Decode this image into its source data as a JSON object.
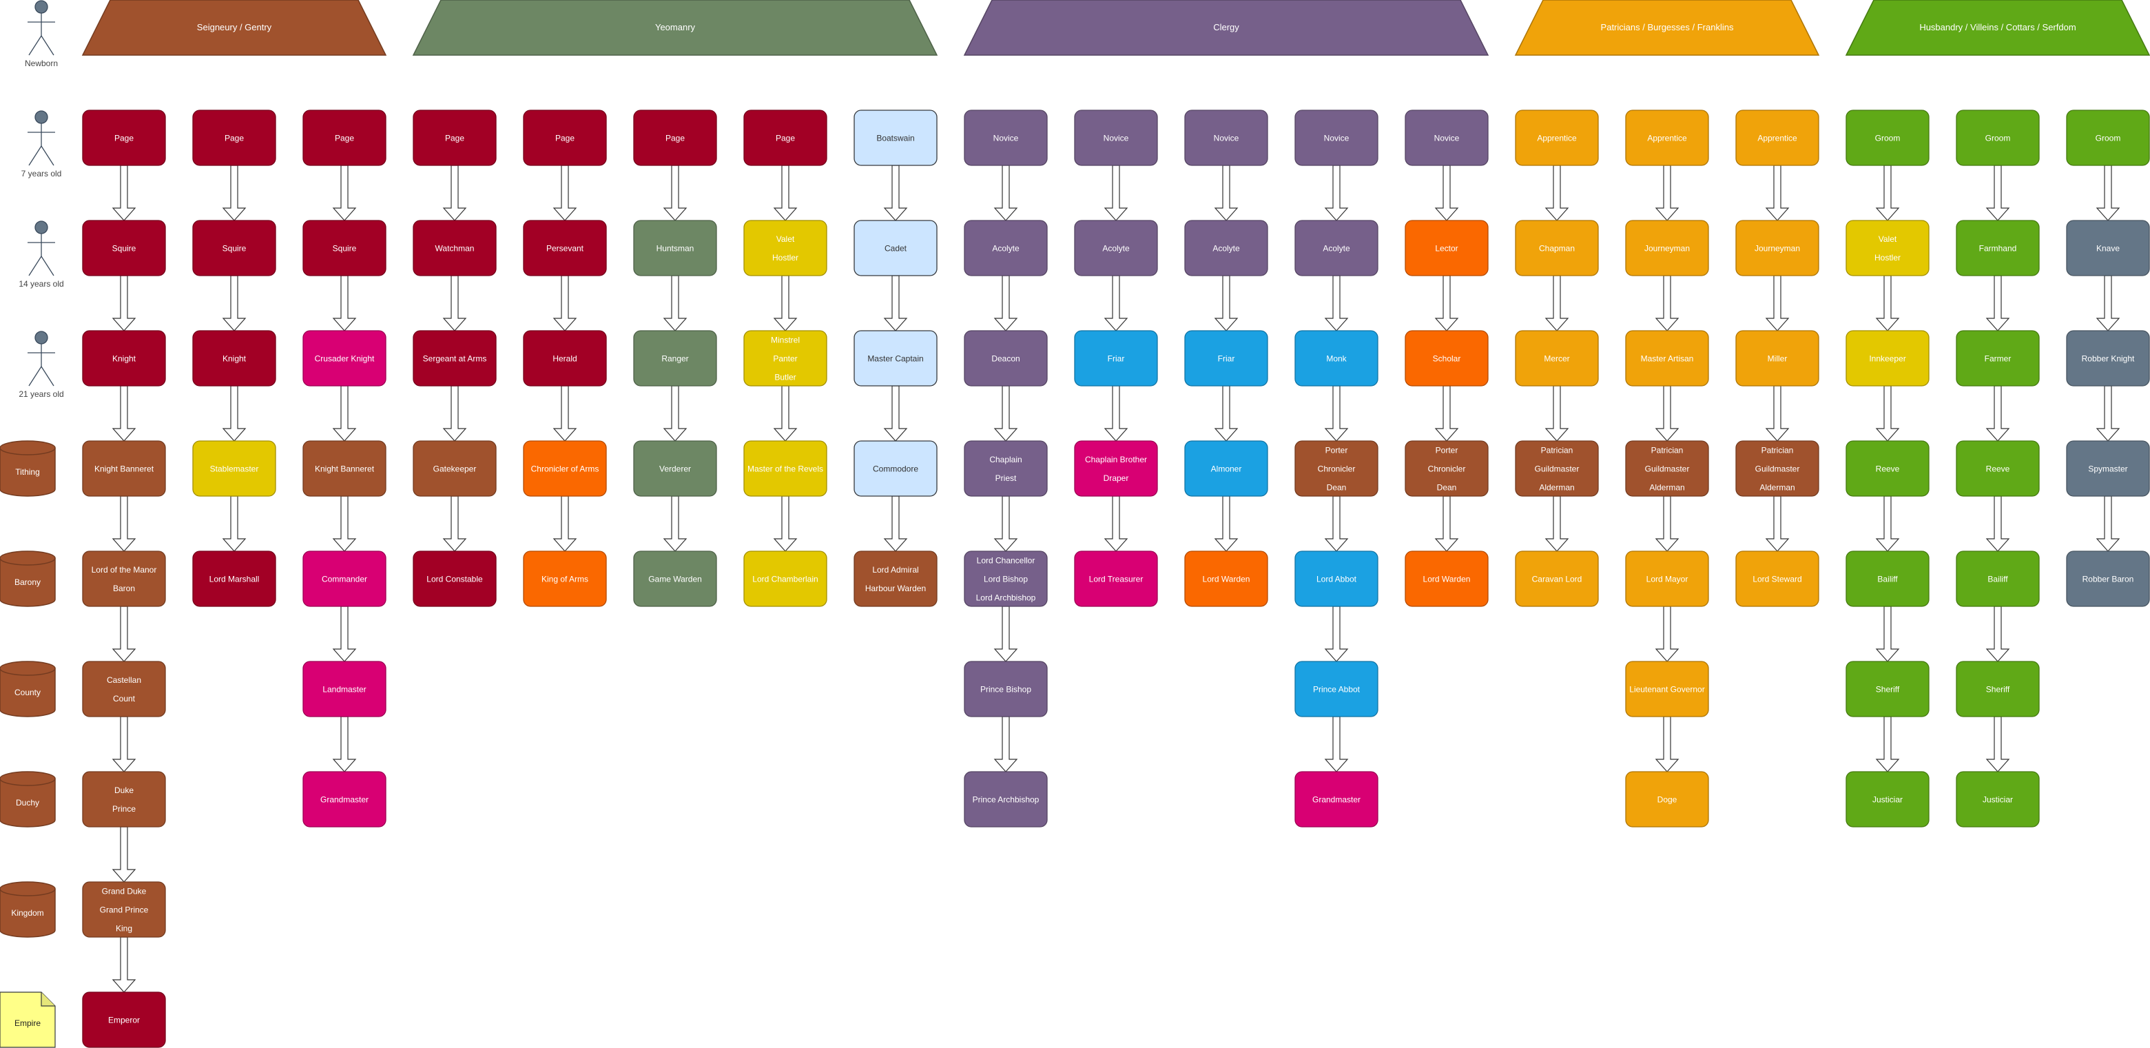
{
  "colors": {
    "crimson": "#a20025",
    "brown": "#a0522d",
    "sage": "#6d8764",
    "purple": "#76608a",
    "amber": "#f0a30a",
    "green": "#60a917",
    "yellow": "#e3c800",
    "magenta": "#d80073",
    "orange": "#fa6800",
    "cyan": "#1ba1e2",
    "lightblue": "#cce5ff",
    "slate": "#647687"
  },
  "headers": [
    {
      "text": "Seigneury / Gentry",
      "color": "brown"
    },
    {
      "text": "Yeomanry",
      "color": "sage"
    },
    {
      "text": "Clergy",
      "color": "purple"
    },
    {
      "text": "Patricians / Burgesses / Franklins",
      "color": "amber"
    },
    {
      "text": "Husbandry / Villeins / Cottars / Serfdom",
      "color": "green"
    }
  ],
  "age_labels": [
    {
      "text": "Newborn",
      "icon": "person-icon"
    },
    {
      "text": "7 years old",
      "icon": "person-icon"
    },
    {
      "text": "14 years old",
      "icon": "person-icon"
    },
    {
      "text": "21 years old",
      "icon": "person-icon"
    }
  ],
  "rank_labels": [
    {
      "text": "Tithing",
      "icon": "cylinder-icon"
    },
    {
      "text": "Barony",
      "icon": "cylinder-icon"
    },
    {
      "text": "County",
      "icon": "cylinder-icon"
    },
    {
      "text": "Duchy",
      "icon": "cylinder-icon"
    },
    {
      "text": "Kingdom",
      "icon": "cylinder-icon"
    },
    {
      "text": "Empire",
      "icon": "note-icon"
    }
  ],
  "columns": [
    [
      {
        "lines": [
          "Page"
        ],
        "color": "crimson"
      },
      {
        "lines": [
          "Squire"
        ],
        "color": "crimson"
      },
      {
        "lines": [
          "Knight"
        ],
        "color": "crimson"
      },
      {
        "lines": [
          "Knight Banneret"
        ],
        "color": "brown"
      },
      {
        "lines": [
          "Lord of the Manor",
          "Baron"
        ],
        "color": "brown"
      },
      {
        "lines": [
          "Castellan",
          "Count"
        ],
        "color": "brown"
      },
      {
        "lines": [
          "Duke",
          "Prince"
        ],
        "color": "brown"
      },
      {
        "lines": [
          "Grand Duke",
          "Grand Prince",
          "King"
        ],
        "color": "brown"
      },
      {
        "lines": [
          "Emperor"
        ],
        "color": "crimson"
      }
    ],
    [
      {
        "lines": [
          "Page"
        ],
        "color": "crimson"
      },
      {
        "lines": [
          "Squire"
        ],
        "color": "crimson"
      },
      {
        "lines": [
          "Knight"
        ],
        "color": "crimson"
      },
      {
        "lines": [
          "Stablemaster"
        ],
        "color": "yellow"
      },
      {
        "lines": [
          "Lord Marshall"
        ],
        "color": "crimson"
      }
    ],
    [
      {
        "lines": [
          "Page"
        ],
        "color": "crimson"
      },
      {
        "lines": [
          "Squire"
        ],
        "color": "crimson"
      },
      {
        "lines": [
          "Crusader Knight"
        ],
        "color": "magenta"
      },
      {
        "lines": [
          "Knight Banneret"
        ],
        "color": "brown"
      },
      {
        "lines": [
          "Commander"
        ],
        "color": "magenta"
      },
      {
        "lines": [
          "Landmaster"
        ],
        "color": "magenta"
      },
      {
        "lines": [
          "Grandmaster"
        ],
        "color": "magenta"
      }
    ],
    [
      {
        "lines": [
          "Page"
        ],
        "color": "crimson"
      },
      {
        "lines": [
          "Watchman"
        ],
        "color": "crimson"
      },
      {
        "lines": [
          "Sergeant at  Arms"
        ],
        "color": "crimson"
      },
      {
        "lines": [
          "Gatekeeper"
        ],
        "color": "brown"
      },
      {
        "lines": [
          "Lord Constable"
        ],
        "color": "crimson"
      }
    ],
    [
      {
        "lines": [
          "Page"
        ],
        "color": "crimson"
      },
      {
        "lines": [
          "Persevant"
        ],
        "color": "crimson"
      },
      {
        "lines": [
          "Herald"
        ],
        "color": "crimson"
      },
      {
        "lines": [
          "Chronicler of Arms"
        ],
        "color": "orange"
      },
      {
        "lines": [
          "King of Arms"
        ],
        "color": "orange"
      }
    ],
    [
      {
        "lines": [
          "Page"
        ],
        "color": "crimson"
      },
      {
        "lines": [
          "Huntsman"
        ],
        "color": "sage"
      },
      {
        "lines": [
          "Ranger"
        ],
        "color": "sage"
      },
      {
        "lines": [
          "Verderer"
        ],
        "color": "sage"
      },
      {
        "lines": [
          "Game Warden"
        ],
        "color": "sage"
      }
    ],
    [
      {
        "lines": [
          "Page"
        ],
        "color": "crimson"
      },
      {
        "lines": [
          "Valet",
          "Hostler"
        ],
        "color": "yellow"
      },
      {
        "lines": [
          "Minstrel",
          "Panter",
          "Butler"
        ],
        "color": "yellow"
      },
      {
        "lines": [
          "Master of the Revels"
        ],
        "color": "yellow"
      },
      {
        "lines": [
          "Lord Chamberlain"
        ],
        "color": "yellow"
      }
    ],
    [
      {
        "lines": [
          "Boatswain"
        ],
        "color": "lightblue"
      },
      {
        "lines": [
          "Cadet"
        ],
        "color": "lightblue"
      },
      {
        "lines": [
          "Master Captain"
        ],
        "color": "lightblue"
      },
      {
        "lines": [
          "Commodore"
        ],
        "color": "lightblue"
      },
      {
        "lines": [
          "Lord Admiral",
          "Harbour Warden"
        ],
        "color": "brown"
      }
    ],
    [
      {
        "lines": [
          "Novice"
        ],
        "color": "purple"
      },
      {
        "lines": [
          "Acolyte"
        ],
        "color": "purple"
      },
      {
        "lines": [
          "Deacon"
        ],
        "color": "purple"
      },
      {
        "lines": [
          "Chaplain",
          "Priest"
        ],
        "color": "purple"
      },
      {
        "lines": [
          "Lord Chancellor",
          "Lord Bishop",
          "Lord Archbishop"
        ],
        "color": "purple"
      },
      {
        "lines": [
          "Prince Bishop"
        ],
        "color": "purple"
      },
      {
        "lines": [
          "Prince Archbishop"
        ],
        "color": "purple"
      }
    ],
    [
      {
        "lines": [
          "Novice"
        ],
        "color": "purple"
      },
      {
        "lines": [
          "Acolyte"
        ],
        "color": "purple"
      },
      {
        "lines": [
          "Friar"
        ],
        "color": "cyan"
      },
      {
        "lines": [
          "Chaplain Brother",
          "Draper"
        ],
        "color": "magenta"
      },
      {
        "lines": [
          "Lord Treasurer"
        ],
        "color": "magenta"
      }
    ],
    [
      {
        "lines": [
          "Novice"
        ],
        "color": "purple"
      },
      {
        "lines": [
          "Acolyte"
        ],
        "color": "purple"
      },
      {
        "lines": [
          "Friar"
        ],
        "color": "cyan"
      },
      {
        "lines": [
          "Almoner"
        ],
        "color": "cyan"
      },
      {
        "lines": [
          "Lord Warden"
        ],
        "color": "orange"
      }
    ],
    [
      {
        "lines": [
          "Novice"
        ],
        "color": "purple"
      },
      {
        "lines": [
          "Acolyte"
        ],
        "color": "purple"
      },
      {
        "lines": [
          "Monk"
        ],
        "color": "cyan"
      },
      {
        "lines": [
          "Porter",
          "Chronicler",
          "Dean"
        ],
        "color": "brown"
      },
      {
        "lines": [
          "Lord Abbot"
        ],
        "color": "cyan"
      },
      {
        "lines": [
          "Prince Abbot"
        ],
        "color": "cyan"
      },
      {
        "lines": [
          "Grandmaster"
        ],
        "color": "magenta"
      }
    ],
    [
      {
        "lines": [
          "Novice"
        ],
        "color": "purple"
      },
      {
        "lines": [
          "Lector"
        ],
        "color": "orange"
      },
      {
        "lines": [
          "Scholar"
        ],
        "color": "orange"
      },
      {
        "lines": [
          "Porter",
          "Chronicler",
          "Dean"
        ],
        "color": "brown"
      },
      {
        "lines": [
          "Lord Warden"
        ],
        "color": "orange"
      }
    ],
    [
      {
        "lines": [
          "Apprentice"
        ],
        "color": "amber"
      },
      {
        "lines": [
          "Chapman"
        ],
        "color": "amber"
      },
      {
        "lines": [
          "Mercer"
        ],
        "color": "amber"
      },
      {
        "lines": [
          "Patrician",
          "Guildmaster",
          "Alderman"
        ],
        "color": "brown"
      },
      {
        "lines": [
          "Caravan Lord"
        ],
        "color": "amber"
      }
    ],
    [
      {
        "lines": [
          "Apprentice"
        ],
        "color": "amber"
      },
      {
        "lines": [
          "Journeyman"
        ],
        "color": "amber"
      },
      {
        "lines": [
          "Master Artisan"
        ],
        "color": "amber"
      },
      {
        "lines": [
          "Patrician",
          "Guildmaster",
          "Alderman"
        ],
        "color": "brown"
      },
      {
        "lines": [
          "Lord Mayor"
        ],
        "color": "amber"
      },
      {
        "lines": [
          "Lieutenant Governor"
        ],
        "color": "amber"
      },
      {
        "lines": [
          "Doge"
        ],
        "color": "amber"
      }
    ],
    [
      {
        "lines": [
          "Apprentice"
        ],
        "color": "amber"
      },
      {
        "lines": [
          "Journeyman"
        ],
        "color": "amber"
      },
      {
        "lines": [
          "Miller"
        ],
        "color": "amber"
      },
      {
        "lines": [
          "Patrician",
          "Guildmaster",
          "Alderman"
        ],
        "color": "brown"
      },
      {
        "lines": [
          "Lord Steward"
        ],
        "color": "amber"
      }
    ],
    [
      {
        "lines": [
          "Groom"
        ],
        "color": "green"
      },
      {
        "lines": [
          "Valet",
          "Hostler"
        ],
        "color": "yellow"
      },
      {
        "lines": [
          "Innkeeper"
        ],
        "color": "yellow"
      },
      {
        "lines": [
          "Reeve"
        ],
        "color": "green"
      },
      {
        "lines": [
          "Bailiff"
        ],
        "color": "green"
      },
      {
        "lines": [
          "Sheriff"
        ],
        "color": "green"
      },
      {
        "lines": [
          "Justiciar"
        ],
        "color": "green"
      }
    ],
    [
      {
        "lines": [
          "Groom"
        ],
        "color": "green"
      },
      {
        "lines": [
          "Farmhand"
        ],
        "color": "green"
      },
      {
        "lines": [
          "Farmer"
        ],
        "color": "green"
      },
      {
        "lines": [
          "Reeve"
        ],
        "color": "green"
      },
      {
        "lines": [
          "Bailiff"
        ],
        "color": "green"
      },
      {
        "lines": [
          "Sheriff"
        ],
        "color": "green"
      },
      {
        "lines": [
          "Justiciar"
        ],
        "color": "green"
      }
    ],
    [
      {
        "lines": [
          "Groom"
        ],
        "color": "green"
      },
      {
        "lines": [
          "Knave"
        ],
        "color": "slate"
      },
      {
        "lines": [
          "Robber Knight"
        ],
        "color": "slate"
      },
      {
        "lines": [
          "Spymaster"
        ],
        "color": "slate"
      },
      {
        "lines": [
          "Robber Baron"
        ],
        "color": "slate"
      }
    ]
  ]
}
